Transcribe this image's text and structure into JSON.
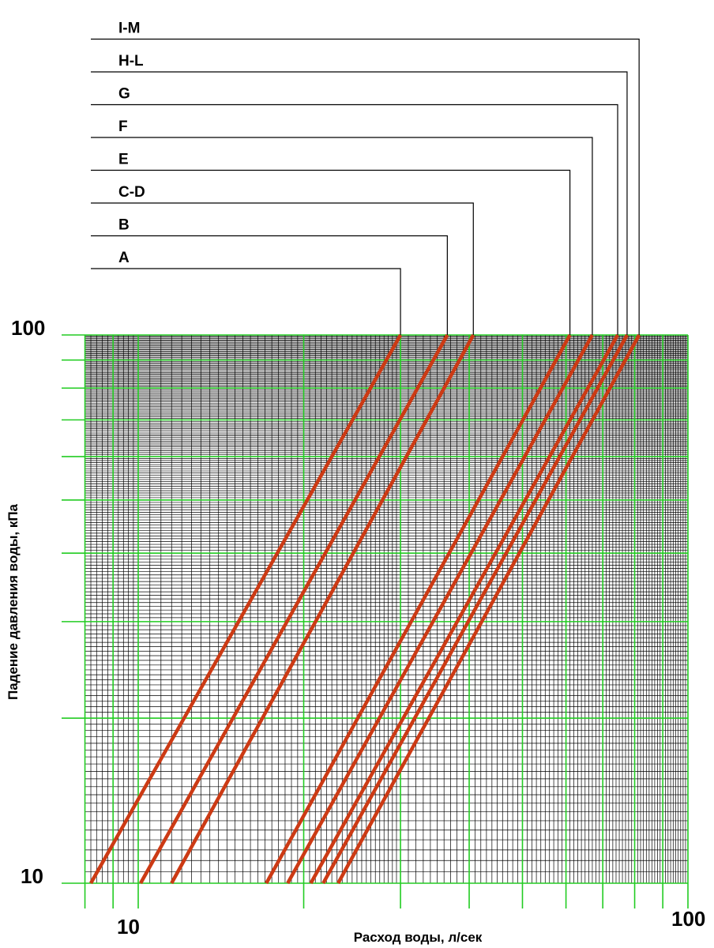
{
  "chart_data": {
    "type": "line",
    "xlabel": "Расход воды, л/сек",
    "ylabel": "Падение давления воды, кПа",
    "x_scale": "log",
    "y_scale": "log",
    "xlim": [
      8,
      100
    ],
    "ylim": [
      10,
      100
    ],
    "x_tick_labels": [
      "10",
      "100"
    ],
    "y_tick_labels": [
      "10",
      "100"
    ],
    "grid": true,
    "colors": {
      "major_grid": "#22cc22",
      "minor_grid": "#000000",
      "series": "#cc3a14",
      "leader": "#000000"
    },
    "series": [
      {
        "name": "A",
        "x": [
          8.2,
          30.0
        ],
        "y": [
          10,
          100
        ]
      },
      {
        "name": "B",
        "x": [
          10.1,
          36.5
        ],
        "y": [
          10,
          100
        ]
      },
      {
        "name": "C-D",
        "x": [
          11.5,
          40.7
        ],
        "y": [
          10,
          100
        ]
      },
      {
        "name": "E",
        "x": [
          17.1,
          61.0
        ],
        "y": [
          10,
          100
        ]
      },
      {
        "name": "F",
        "x": [
          18.7,
          67.0
        ],
        "y": [
          10,
          100
        ]
      },
      {
        "name": "G",
        "x": [
          20.6,
          74.5
        ],
        "y": [
          10,
          100
        ]
      },
      {
        "name": "H-L",
        "x": [
          21.7,
          77.5
        ],
        "y": [
          10,
          100
        ]
      },
      {
        "name": "I-M",
        "x": [
          23.1,
          81.5
        ],
        "y": [
          10,
          100
        ]
      }
    ]
  }
}
